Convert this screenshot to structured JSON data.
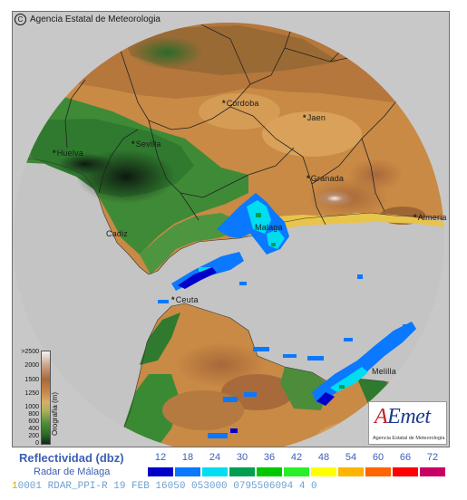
{
  "credit": "Agencia Estatal de Meteorologia",
  "cities": [
    {
      "name": "Cordoba",
      "marker": "*",
      "id": "cordoba"
    },
    {
      "name": "Jaen",
      "marker": "*",
      "id": "jaen"
    },
    {
      "name": "Huelva",
      "marker": "*",
      "id": "huelva"
    },
    {
      "name": "Sevilla",
      "marker": "*",
      "id": "sevilla"
    },
    {
      "name": "Granada",
      "marker": "*",
      "id": "granada"
    },
    {
      "name": "Almeria",
      "marker": "*",
      "id": "almeria"
    },
    {
      "name": "Malaga",
      "marker": "",
      "id": "malaga"
    },
    {
      "name": "Cadiz",
      "marker": "",
      "id": "cadiz"
    },
    {
      "name": "Ceuta",
      "marker": "*",
      "id": "ceuta"
    },
    {
      "name": "Melilla",
      "marker": "",
      "id": "melilla"
    }
  ],
  "orography": {
    "title": "Orografía (m)",
    "ticks": [
      ">2500",
      "2000",
      "1500",
      "1250",
      "1000",
      "800",
      "600",
      "400",
      "200",
      "0"
    ]
  },
  "logo": {
    "word_a": "A",
    "word_rest": "Emet",
    "subtitle": "Agencia Estatal de Meteorología"
  },
  "legend": {
    "title": "Reflectividad (dbz)",
    "radar": "Radar de Málaga",
    "values": [
      "12",
      "18",
      "24",
      "30",
      "36",
      "42",
      "48",
      "54",
      "60",
      "66",
      "72"
    ],
    "colors": [
      "#0000c8",
      "#0a78ff",
      "#00dcf0",
      "#00a050",
      "#00c800",
      "#28f028",
      "#ffff00",
      "#ffb400",
      "#ff6400",
      "#ff0000",
      "#c80064"
    ]
  },
  "status": {
    "first": "1",
    "rest": "0001 RDAR_PPI-R   19 FEB 16050 053000 0795506094 4 0"
  }
}
